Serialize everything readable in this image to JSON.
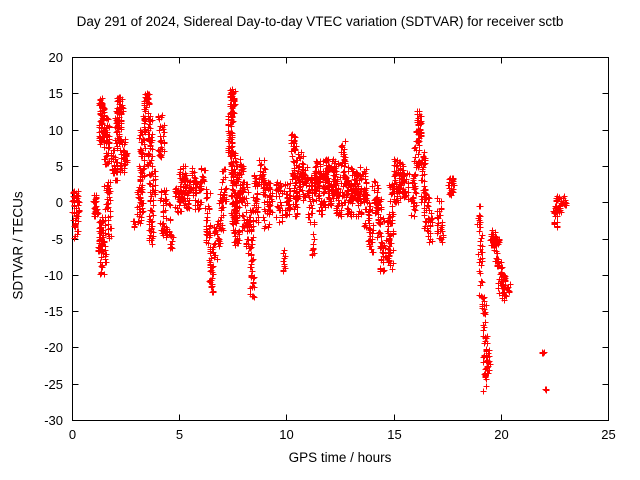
{
  "title": "Day 291 of 2024, Sidereal Day-to-day VTEC variation (SDTVAR) for receiver sctb",
  "chart_data": {
    "type": "scatter",
    "title": "Day 291 of 2024, Sidereal Day-to-day VTEC variation (SDTVAR) for receiver sctb",
    "xlabel": "GPS time / hours",
    "ylabel": "SDTVAR / TECUs",
    "xlim": [
      0,
      25
    ],
    "ylim": [
      -30,
      20
    ],
    "xticks": [
      0,
      5,
      10,
      15,
      20,
      25
    ],
    "yticks": [
      20,
      15,
      10,
      5,
      0,
      -5,
      -10,
      -15,
      -20,
      -25,
      -30
    ],
    "grid": false,
    "legend": "none",
    "marker": "plus",
    "marker_color": "#ff0000",
    "frame_color": "#000000",
    "series_name": "SDTVAR",
    "point_clusters": [
      [
        0.0,
        0.35,
        -1.5,
        2,
        30
      ],
      [
        0.05,
        0.3,
        -5,
        -1.5,
        20
      ],
      [
        1.0,
        1.2,
        -2,
        1,
        25
      ],
      [
        1.2,
        1.45,
        -7,
        -2,
        40
      ],
      [
        1.25,
        1.5,
        8,
        14.5,
        60
      ],
      [
        1.3,
        1.6,
        -10,
        -5,
        25
      ],
      [
        1.45,
        1.75,
        5,
        12,
        50
      ],
      [
        1.5,
        1.8,
        -5,
        3,
        40
      ],
      [
        1.8,
        2.1,
        3,
        8,
        30
      ],
      [
        2.0,
        2.3,
        8,
        13,
        45
      ],
      [
        2.1,
        2.45,
        12,
        14.5,
        25
      ],
      [
        2.2,
        2.5,
        4,
        9,
        35
      ],
      [
        2.4,
        2.6,
        5,
        7,
        15
      ],
      [
        2.85,
        2.95,
        -3.5,
        -2.5,
        6
      ],
      [
        3.0,
        3.3,
        -3,
        3,
        35
      ],
      [
        3.1,
        3.4,
        3,
        10,
        40
      ],
      [
        3.3,
        3.6,
        10,
        15,
        40
      ],
      [
        3.5,
        3.75,
        5,
        12,
        35
      ],
      [
        3.55,
        3.8,
        -6,
        0,
        25
      ],
      [
        3.6,
        3.9,
        0,
        5,
        25
      ],
      [
        4.0,
        4.3,
        6,
        12,
        30
      ],
      [
        4.1,
        4.4,
        -5,
        2,
        30
      ],
      [
        4.3,
        4.6,
        -5,
        0,
        20
      ],
      [
        4.55,
        4.7,
        -6.5,
        -4,
        10
      ],
      [
        4.8,
        5.1,
        -2,
        2,
        25
      ],
      [
        5.0,
        5.3,
        0,
        5,
        35
      ],
      [
        5.2,
        5.5,
        -1,
        4,
        30
      ],
      [
        5.5,
        5.8,
        0,
        5,
        25
      ],
      [
        5.7,
        6.0,
        -1,
        3,
        20
      ],
      [
        6.0,
        6.2,
        1,
        5,
        15
      ],
      [
        6.2,
        6.45,
        -6,
        2,
        30
      ],
      [
        6.4,
        6.6,
        -12.5,
        -6,
        35
      ],
      [
        6.6,
        6.9,
        -8,
        -3,
        25
      ],
      [
        6.8,
        7.05,
        -4,
        2,
        25
      ],
      [
        7.0,
        7.2,
        0,
        5,
        20
      ],
      [
        7.25,
        7.5,
        5,
        12,
        45
      ],
      [
        7.35,
        7.6,
        12,
        15.7,
        35
      ],
      [
        7.4,
        7.7,
        -3,
        7,
        70
      ],
      [
        7.5,
        7.8,
        -6,
        0,
        40
      ],
      [
        7.7,
        8.0,
        0,
        6,
        40
      ],
      [
        7.9,
        8.2,
        -4,
        3,
        40
      ],
      [
        8.1,
        8.45,
        -7,
        -1,
        35
      ],
      [
        8.3,
        8.5,
        -13,
        -7,
        25
      ],
      [
        8.4,
        8.7,
        -3,
        4,
        30
      ],
      [
        8.7,
        9.0,
        2,
        6,
        30
      ],
      [
        8.9,
        9.2,
        -4,
        3,
        30
      ],
      [
        9.1,
        9.35,
        -2,
        3,
        20
      ],
      [
        9.5,
        9.8,
        -3,
        3,
        30
      ],
      [
        9.85,
        9.95,
        -9.7,
        -6,
        10
      ],
      [
        9.9,
        10.2,
        -2,
        3,
        30
      ],
      [
        10.2,
        10.45,
        3,
        9.5,
        35
      ],
      [
        10.3,
        10.6,
        -2,
        4,
        35
      ],
      [
        10.5,
        10.8,
        2,
        7,
        30
      ],
      [
        10.7,
        11.0,
        0,
        5,
        25
      ],
      [
        11.0,
        11.3,
        -3,
        4,
        35
      ],
      [
        11.15,
        11.3,
        -7.5,
        -4,
        10
      ],
      [
        11.3,
        11.6,
        0,
        6,
        35
      ],
      [
        11.5,
        11.8,
        -2,
        4,
        35
      ],
      [
        11.7,
        12.0,
        1,
        6,
        30
      ],
      [
        11.9,
        12.2,
        -1,
        5,
        35
      ],
      [
        12.1,
        12.4,
        0,
        6,
        35
      ],
      [
        12.3,
        12.6,
        -2,
        4,
        30
      ],
      [
        12.55,
        12.75,
        5,
        8.7,
        20
      ],
      [
        12.6,
        12.9,
        0,
        5,
        30
      ],
      [
        12.8,
        13.1,
        -2,
        3,
        30
      ],
      [
        13.0,
        13.3,
        0,
        5,
        30
      ],
      [
        13.2,
        13.5,
        -2,
        4,
        30
      ],
      [
        13.4,
        13.7,
        0,
        5,
        25
      ],
      [
        13.6,
        13.9,
        -4,
        2,
        30
      ],
      [
        13.8,
        14.05,
        -7,
        -3,
        20
      ],
      [
        14.0,
        14.3,
        -2,
        3,
        25
      ],
      [
        14.2,
        14.45,
        -5,
        1,
        25
      ],
      [
        14.35,
        14.55,
        -9.5,
        -5,
        20
      ],
      [
        14.5,
        14.8,
        -8,
        -2,
        25
      ],
      [
        14.7,
        15.0,
        -9.5,
        -4,
        25
      ],
      [
        14.8,
        15.05,
        -3,
        3,
        25
      ],
      [
        15.0,
        15.3,
        0,
        6,
        35
      ],
      [
        15.2,
        15.5,
        1,
        6,
        30
      ],
      [
        15.45,
        15.7,
        0,
        4,
        20
      ],
      [
        15.8,
        16.05,
        -2,
        4,
        30
      ],
      [
        15.95,
        16.2,
        4,
        10,
        30
      ],
      [
        16.1,
        16.3,
        9,
        12.6,
        25
      ],
      [
        16.25,
        16.5,
        0,
        7,
        30
      ],
      [
        16.4,
        16.65,
        -4,
        2,
        25
      ],
      [
        16.6,
        16.8,
        -6,
        -1,
        15
      ],
      [
        17.0,
        17.25,
        -5,
        1,
        20
      ],
      [
        17.15,
        17.35,
        -5.5,
        -3,
        10
      ],
      [
        17.5,
        17.8,
        1,
        3.5,
        25
      ],
      [
        18.85,
        19.05,
        -3,
        0,
        10
      ],
      [
        18.95,
        19.15,
        -13,
        -3,
        25
      ],
      [
        19.1,
        19.3,
        -17,
        -13,
        15
      ],
      [
        19.15,
        19.35,
        -26,
        -17,
        30
      ],
      [
        19.3,
        19.5,
        -24,
        -20,
        15
      ],
      [
        19.5,
        19.8,
        -6,
        -3.5,
        25
      ],
      [
        19.7,
        19.95,
        -9,
        -5,
        20
      ],
      [
        19.85,
        20.1,
        -13,
        -8,
        25
      ],
      [
        20.0,
        20.25,
        -14,
        -10,
        20
      ],
      [
        20.3,
        20.45,
        -13,
        -11,
        6
      ],
      [
        21.9,
        22.0,
        -20.8,
        -20.2,
        4
      ],
      [
        22.05,
        22.15,
        -26,
        -25.6,
        3
      ],
      [
        22.45,
        22.65,
        -3.7,
        -0.5,
        15
      ],
      [
        22.55,
        22.85,
        -1.5,
        1,
        25
      ],
      [
        22.9,
        23.05,
        -0.5,
        1,
        10
      ]
    ]
  }
}
